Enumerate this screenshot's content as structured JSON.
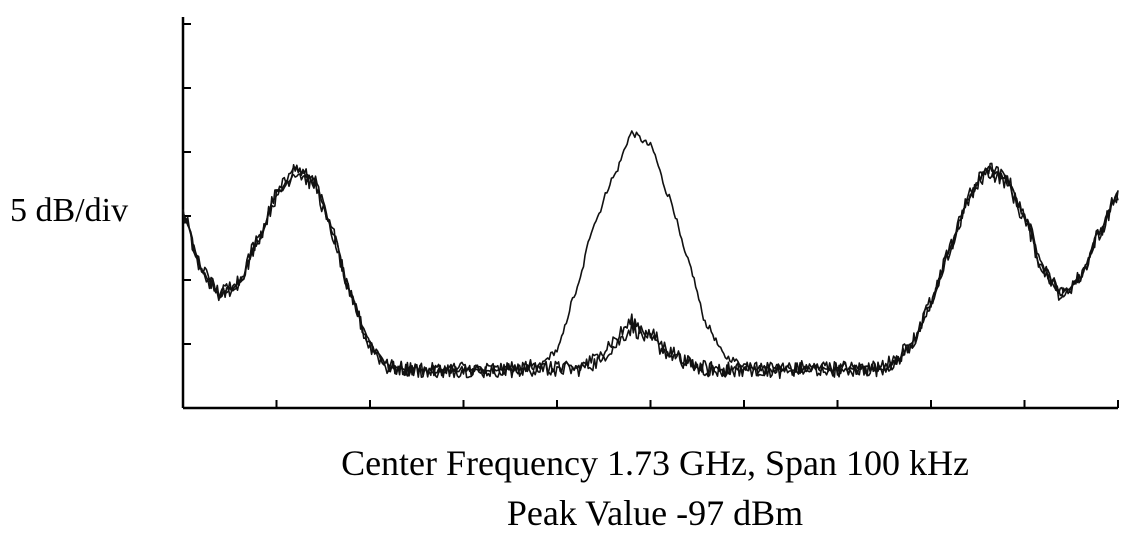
{
  "chart_data": {
    "type": "line",
    "title": "",
    "scale_label": "5 dB/div",
    "xlabel": "Center Frequency 1.73 GHz, Span 100 kHz",
    "caption": "Peak Value -97 dBm",
    "y_divisions": 6,
    "x_divisions": 10,
    "x": [
      0,
      2,
      4,
      6,
      8,
      10,
      12,
      14,
      16,
      18,
      20,
      22,
      24,
      26,
      28,
      30,
      32,
      34,
      36,
      38,
      40,
      42,
      44,
      46,
      48,
      50,
      52,
      54,
      56,
      58,
      60,
      62,
      64,
      66,
      68,
      70,
      72,
      74,
      76,
      78,
      80,
      82,
      84,
      86,
      88,
      90,
      92,
      94,
      96,
      98,
      100
    ],
    "series": [
      {
        "values": [
          3.05,
          2.15,
          1.75,
          1.95,
          2.6,
          3.35,
          3.75,
          3.55,
          2.75,
          1.75,
          1.0,
          0.65,
          0.62,
          0.6,
          0.58,
          0.6,
          0.58,
          0.6,
          0.62,
          0.65,
          0.9,
          1.8,
          2.9,
          3.6,
          4.3,
          4.1,
          3.3,
          2.3,
          1.3,
          0.8,
          0.68,
          0.62,
          0.6,
          0.6,
          0.62,
          0.6,
          0.62,
          0.6,
          0.7,
          1.0,
          1.6,
          2.5,
          3.3,
          3.75,
          3.6,
          3.0,
          2.2,
          1.75,
          2.05,
          2.75,
          3.35
        ]
      },
      {
        "values": [
          3.05,
          2.15,
          1.75,
          1.95,
          2.6,
          3.35,
          3.75,
          3.55,
          2.75,
          1.75,
          1.0,
          0.65,
          0.62,
          0.6,
          0.58,
          0.6,
          0.58,
          0.6,
          0.62,
          0.65,
          0.62,
          0.6,
          0.7,
          0.95,
          1.25,
          1.05,
          0.85,
          0.68,
          0.62,
          0.6,
          0.6,
          0.62,
          0.6,
          0.6,
          0.62,
          0.6,
          0.62,
          0.6,
          0.7,
          1.0,
          1.6,
          2.5,
          3.3,
          3.75,
          3.6,
          3.0,
          2.2,
          1.75,
          2.05,
          2.75,
          3.35
        ]
      },
      {
        "values": [
          3.0,
          2.1,
          1.8,
          2.0,
          2.65,
          3.3,
          3.7,
          3.5,
          2.7,
          1.7,
          0.95,
          0.62,
          0.6,
          0.58,
          0.6,
          0.62,
          0.6,
          0.58,
          0.6,
          0.62,
          0.6,
          0.62,
          0.75,
          1.05,
          1.35,
          1.15,
          0.9,
          0.7,
          0.6,
          0.58,
          0.62,
          0.6,
          0.58,
          0.62,
          0.6,
          0.62,
          0.6,
          0.62,
          0.72,
          1.05,
          1.65,
          2.45,
          3.25,
          3.7,
          3.55,
          2.95,
          2.15,
          1.8,
          2.1,
          2.7,
          3.3
        ]
      }
    ]
  }
}
